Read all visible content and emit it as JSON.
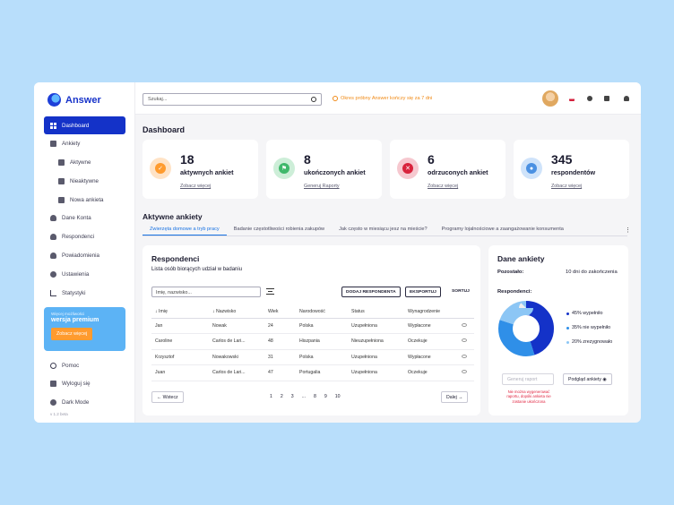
{
  "app": {
    "name": "Answer"
  },
  "sidebar": {
    "items": [
      {
        "label": "Dashboard",
        "active": true,
        "sub": false,
        "icon": "grid-icon"
      },
      {
        "label": "Ankiety",
        "active": false,
        "sub": false,
        "icon": "document-icon"
      },
      {
        "label": "Aktywne",
        "active": false,
        "sub": true,
        "icon": "document-icon"
      },
      {
        "label": "Nieaktywne",
        "active": false,
        "sub": true,
        "icon": "document-icon"
      },
      {
        "label": "Nowa ankieta",
        "active": false,
        "sub": true,
        "icon": "document-icon"
      },
      {
        "label": "Dane Konta",
        "active": false,
        "sub": false,
        "icon": "user-icon"
      },
      {
        "label": "Respondenci",
        "active": false,
        "sub": false,
        "icon": "users-icon"
      },
      {
        "label": "Powiadomienia",
        "active": false,
        "sub": false,
        "icon": "bell-icon"
      },
      {
        "label": "Ustawienia",
        "active": false,
        "sub": false,
        "icon": "gear-icon"
      },
      {
        "label": "Statystyki",
        "active": false,
        "sub": false,
        "icon": "chart-icon"
      }
    ],
    "promo": {
      "line1": "Więcej możliwości",
      "line2": "wersja premium",
      "button": "Zobacz więcej"
    },
    "bottom": [
      {
        "label": "Pomoc",
        "icon": "help-icon"
      },
      {
        "label": "Wyloguj się",
        "icon": "logout-icon"
      },
      {
        "label": "Dark Mode",
        "icon": "moon-icon"
      }
    ],
    "version": "v 1.2 beta"
  },
  "topbar": {
    "search_placeholder": "Szukaj...",
    "trial_text": "Okres próbny Answer kończy się za 7 dni"
  },
  "dashboard": {
    "title": "Dashboard",
    "stats": [
      {
        "number": "18",
        "label": "aktywnych ankiet",
        "link": "Zobacz więcej",
        "color": "#ff9b2e",
        "bg": "#ffe3c6",
        "glyph": "✓",
        "icon": "check-icon"
      },
      {
        "number": "8",
        "label": "ukończonych ankiet",
        "link": "Generuj Raporty",
        "color": "#3fb86b",
        "bg": "#cdeed8",
        "glyph": "⚑",
        "icon": "flag-icon"
      },
      {
        "number": "6",
        "label": "odrzuconych ankiet",
        "link": "Zobacz więcej",
        "color": "#d8233c",
        "bg": "#f6c8cf",
        "glyph": "✕",
        "icon": "close-icon"
      },
      {
        "number": "345",
        "label": "respondentów",
        "link": "Zobacz więcej",
        "color": "#4a90e2",
        "bg": "#cfe3fa",
        "glyph": "●",
        "icon": "users-icon"
      }
    ],
    "active_title": "Aktywne ankiety",
    "tabs": [
      "Zwierzęta domowe a tryb pracy",
      "Badanie częstotliwości robienia zakupów",
      "Jak często w miesiącu jesz na mieście?",
      "Programy lojalnościowe a zaangażowanie konsumenta"
    ]
  },
  "respondents": {
    "title": "Respondenci",
    "subtitle": "Lista osób biorących udział w badaniu",
    "filter_placeholder": "Imię, nazwisko...",
    "add_button": "DODAJ RESPONDENTA",
    "export_button": "EKSPORTUJ",
    "sort_label": "SORTUJ",
    "columns": [
      "↓ Imię",
      "↓ Nazwisko",
      "Wiek",
      "Narodowość",
      "Status",
      "Wynagrodzenie"
    ],
    "rows": [
      [
        "Jan",
        "Nowak",
        "24",
        "Polska",
        "Uzupełniona",
        "Wypłacone"
      ],
      [
        "Caroline",
        "Carlos de Lari...",
        "48",
        "Hiszpania",
        "Nieuzupełniona",
        "Oczekuje"
      ],
      [
        "Krzysztof",
        "Nowakowski",
        "31",
        "Polska",
        "Uzupełniona",
        "Wypłacone"
      ],
      [
        "Juan",
        "Carlos de Lari...",
        "47",
        "Portugalia",
        "Uzupełniona",
        "Oczekuje"
      ]
    ],
    "prev": "← Wstecz",
    "next": "Dalej →",
    "pages": [
      "1",
      "2",
      "3",
      "...",
      "8",
      "9",
      "10"
    ]
  },
  "survey": {
    "title": "Dane ankiety",
    "remaining_label": "Pozostało:",
    "remaining_value": "10 dni do zakończenia",
    "respondents_label": "Respondenci:",
    "legend": [
      {
        "label": "45% wypełniło",
        "value": 45,
        "color": "#1432c8"
      },
      {
        "label": "35% nie wypełniło",
        "value": 35,
        "color": "#2f8fe8"
      },
      {
        "label": "20% zrezygnowało",
        "value": 20,
        "color": "#8cc6f5"
      }
    ],
    "report_button": "Generuj raport",
    "preview_button": "Podgląd ankiety",
    "warning": "Nie można wygenerować raportu, dopóki ankieta nie zostanie ukończona"
  }
}
